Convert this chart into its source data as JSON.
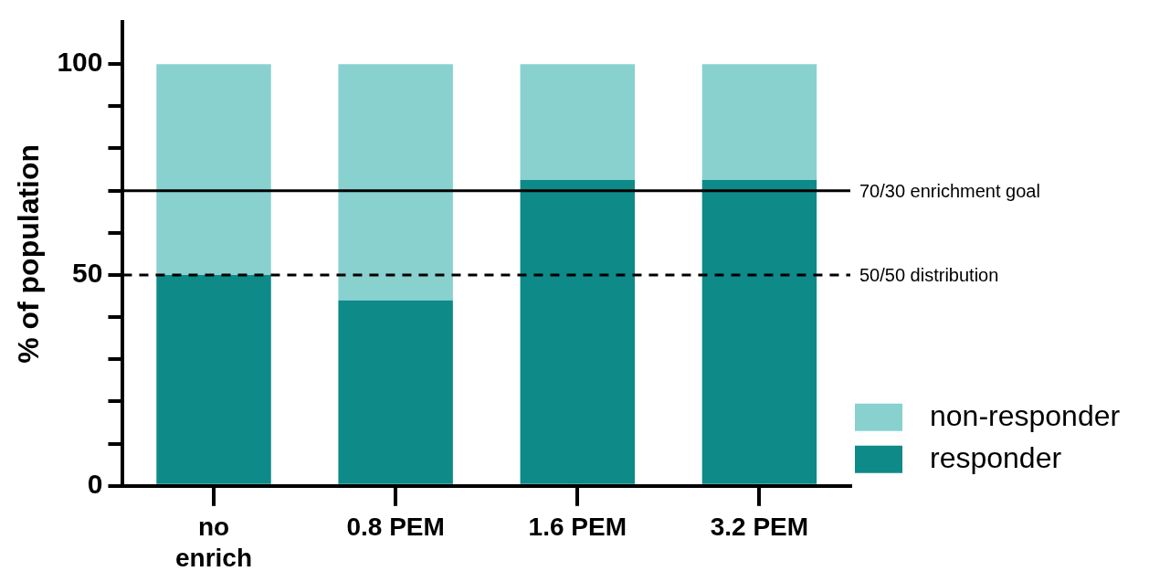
{
  "chart_data": {
    "type": "bar",
    "stacked": true,
    "ylabel": "% of population",
    "categories": [
      "no enrich",
      "0.8 PEM",
      "1.6 PEM",
      "3.2 PEM"
    ],
    "series": [
      {
        "name": "responder",
        "color": "#0e8a88",
        "values": [
          50,
          44,
          72.5,
          72.5
        ]
      },
      {
        "name": "non-responder",
        "color": "#88d1cf",
        "values": [
          50,
          56,
          27.5,
          27.5
        ]
      }
    ],
    "ylim": [
      0,
      110
    ],
    "yticks": [
      0,
      {
        "value": 10,
        "label": null
      },
      {
        "value": 20,
        "label": null
      },
      {
        "value": 30,
        "label": null
      },
      {
        "value": 40,
        "label": null
      },
      50,
      {
        "value": 60,
        "label": null
      },
      {
        "value": 70,
        "label": null
      },
      {
        "value": 80,
        "label": null
      },
      {
        "value": 90,
        "label": null
      },
      100
    ],
    "ref_lines": [
      {
        "axis": "y",
        "value": 70,
        "label": "70/30 enrichment goal",
        "color": "#000000",
        "line_style": "solid"
      },
      {
        "axis": "y",
        "value": 50,
        "label": "50/50 distribution",
        "color": "#000000",
        "line_style": "dashed"
      }
    ],
    "grid": false,
    "legend": "right"
  }
}
